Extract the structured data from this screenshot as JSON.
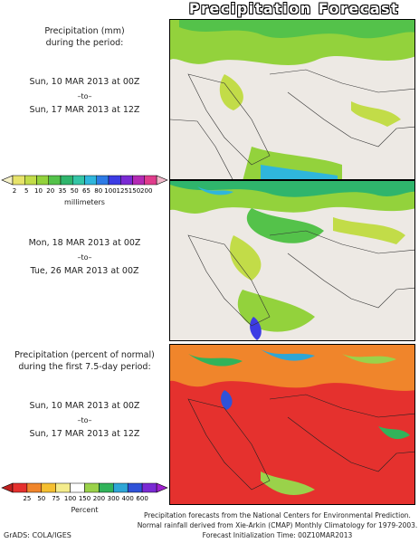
{
  "title": "Precipitation Forecast",
  "panel1": {
    "heading": [
      "Precipitation (mm)",
      "during the period:"
    ],
    "start": "Sun, 10 MAR 2013 at 00Z",
    "to": "–to–",
    "end": "Sun, 17 MAR 2013 at 12Z"
  },
  "panel2": {
    "start": "Mon, 18 MAR 2013 at 00Z",
    "to": "–to–",
    "end": "Tue, 26 MAR 2013 at 00Z"
  },
  "panel3": {
    "heading": [
      "Precipitation (percent of normal)",
      "during the first 7.5-day period:"
    ],
    "start": "Sun, 10 MAR 2013 at 00Z",
    "to": "–to–",
    "end": "Sun, 17 MAR 2013 at 12Z"
  },
  "colorbar_mm": {
    "labels": [
      "2",
      "5",
      "10",
      "20",
      "35",
      "50",
      "65",
      "80",
      "100",
      "125",
      "150",
      "200"
    ],
    "colors": [
      "#e7e36a",
      "#c2dc48",
      "#93d23c",
      "#54c24a",
      "#2fb56c",
      "#34c5a6",
      "#2fb6dc",
      "#2d7be6",
      "#3c3ce4",
      "#7a2ad4",
      "#b42ab4",
      "#e03c8c"
    ],
    "unit": "millimeters"
  },
  "colorbar_pct": {
    "labels": [
      "25",
      "50",
      "75",
      "100",
      "150",
      "200",
      "300",
      "400",
      "600"
    ],
    "colors": [
      "#e5312e",
      "#f0852b",
      "#f5bf30",
      "#f4ec8c",
      "#ffffff",
      "#9ad24a",
      "#31b35a",
      "#2ea6d6",
      "#2f52d8",
      "#7a2ad4"
    ],
    "unit": "Percent"
  },
  "footer": [
    "Precipitation forecasts from the National Centers for Environmental Prediction.",
    "Normal rainfall derived from Xie-Arkin (CMAP) Monthly Climatology for 1979-2003.",
    "Forecast Initialization Time: 00Z10MAR2013"
  ],
  "credit": "GrADS: COLA/IGES"
}
